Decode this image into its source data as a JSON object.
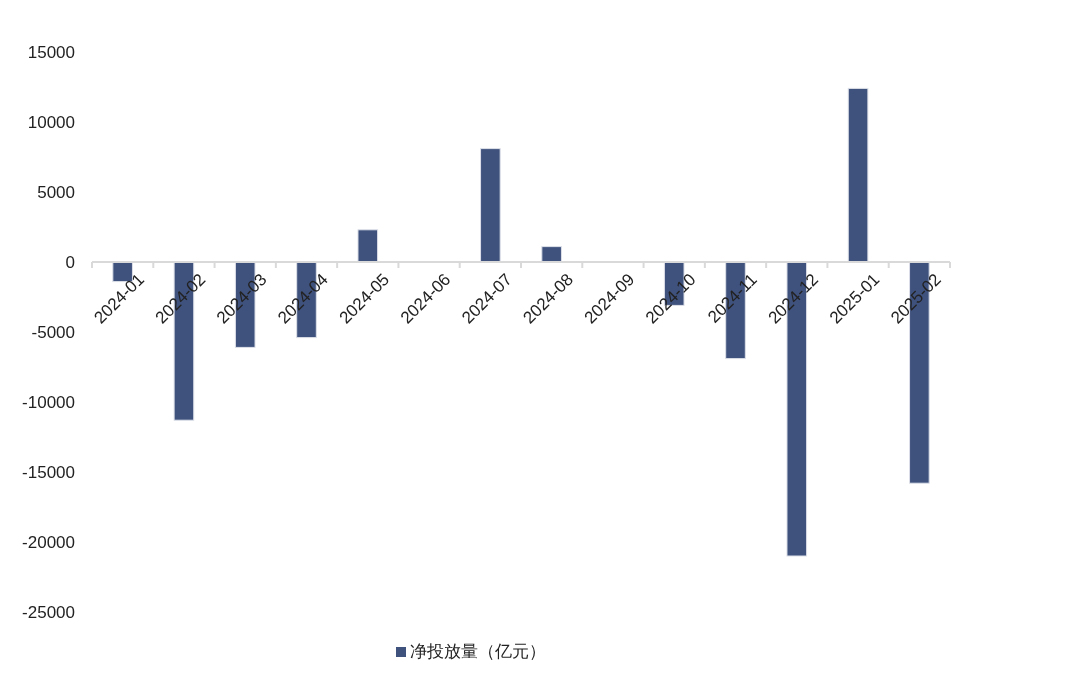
{
  "chart_data": {
    "type": "bar",
    "categories": [
      "2024-01",
      "2024-02",
      "2024-03",
      "2024-04",
      "2024-05",
      "2024-06",
      "2024-07",
      "2024-08",
      "2024-09",
      "2024-10",
      "2024-11",
      "2024-12",
      "2025-01",
      "2025-02"
    ],
    "series": [
      {
        "name": "净投放量（亿元）",
        "color": "#3f527e",
        "values": [
          -1400,
          -11300,
          -6100,
          -5400,
          2300,
          null,
          8100,
          1100,
          null,
          -3100,
          -6900,
          -21000,
          12400,
          -15800
        ]
      }
    ],
    "ylim": [
      -25000,
      15000
    ],
    "yticks": [
      -25000,
      -20000,
      -15000,
      -10000,
      -5000,
      0,
      5000,
      10000,
      15000
    ],
    "grid": false,
    "legend": "bottom"
  }
}
